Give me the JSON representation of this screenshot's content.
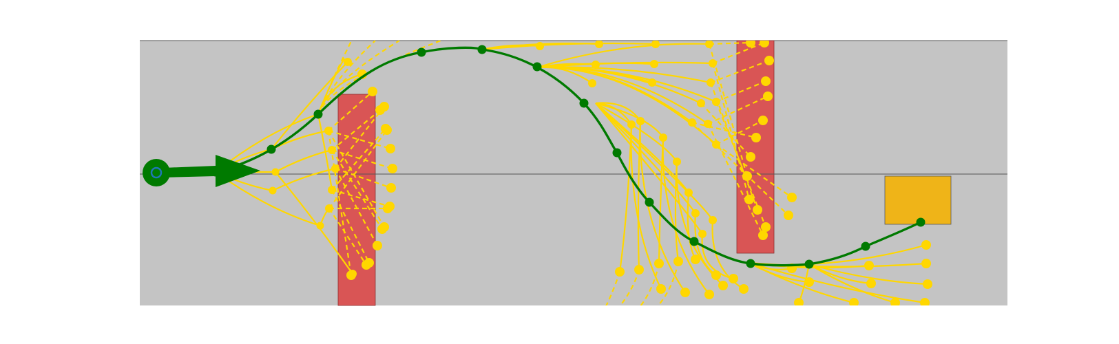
{
  "colors": {
    "background": "#ffffff",
    "arena": "#c4c4c4",
    "obstacle": "#d95555",
    "goal": "#efb418",
    "tree": "#ffd700",
    "path": "#007a00",
    "start_marker": "#007a00",
    "start_inner": "#1f77b4",
    "centerline": "#555555",
    "arena_border": "#555555"
  },
  "icons": {
    "start": "start-marker-icon",
    "heading": "heading-arrow-icon"
  }
}
